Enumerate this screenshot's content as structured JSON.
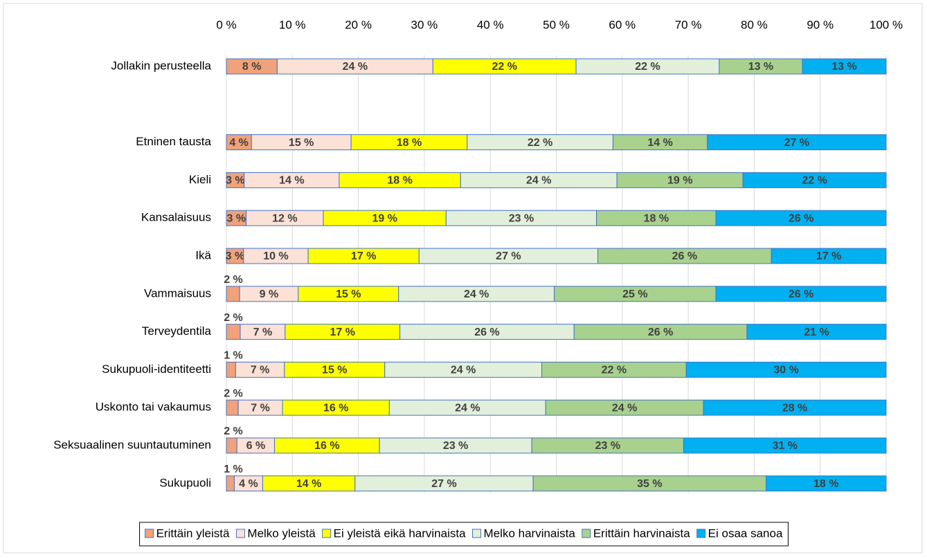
{
  "chart_data": {
    "type": "bar",
    "orientation": "horizontal",
    "stacked": true,
    "categories": [
      "Jollakin perusteella",
      null,
      "Etninen tausta",
      "Kieli",
      "Kansalaisuus",
      "Ikä",
      "Vammaisuus",
      "Terveydentila",
      "Sukupuoli-identiteetti",
      "Uskonto tai vakaumus",
      "Seksuaalinen suuntautuminen",
      "Sukupuoli"
    ],
    "series": [
      {
        "name": "Erittäin yleistä",
        "color": "#f0a27a",
        "values": [
          7.7,
          null,
          3.8,
          2.7,
          3.0,
          2.6,
          2.0,
          2.1,
          1.4,
          1.8,
          1.6,
          1.2
        ],
        "value_labels": [
          "8 %",
          null,
          "4 %",
          "3 %",
          "3 %",
          "3 %",
          "2 %",
          "2 %",
          "1 %",
          "2 %",
          "2 %",
          "1 %"
        ]
      },
      {
        "name": "Melko yleistä",
        "color": "#fbe1d6",
        "values": [
          23.6,
          null,
          15.1,
          14.4,
          11.7,
          9.8,
          8.9,
          6.8,
          7.4,
          6.7,
          5.7,
          4.3
        ],
        "value_labels": [
          "24 %",
          null,
          "15 %",
          "14 %",
          "12 %",
          "10 %",
          "9 %",
          "7 %",
          "7 %",
          "7 %",
          "6 %",
          "4 %"
        ]
      },
      {
        "name": "Ei yleistä eikä harvinaista",
        "color": "#ffff00",
        "values": [
          21.7,
          null,
          17.6,
          18.4,
          18.6,
          16.8,
          15.2,
          17.4,
          15.2,
          16.2,
          15.9,
          14.0
        ],
        "value_labels": [
          "22 %",
          null,
          "18 %",
          "18 %",
          "19 %",
          "17 %",
          "15 %",
          "17 %",
          "15 %",
          "16 %",
          "16 %",
          "14 %"
        ]
      },
      {
        "name": "Melko harvinaista",
        "color": "#e2efda",
        "values": [
          21.7,
          null,
          22.1,
          23.7,
          22.8,
          27.1,
          23.6,
          26.4,
          23.8,
          23.7,
          23.1,
          27.0
        ],
        "value_labels": [
          "22 %",
          null,
          "22 %",
          "24 %",
          "23 %",
          "27 %",
          "24 %",
          "26 %",
          "24 %",
          "24 %",
          "23 %",
          "27 %"
        ]
      },
      {
        "name": "Erittäin harvinaista",
        "color": "#a9d18e",
        "values": [
          12.6,
          null,
          14.3,
          19.1,
          18.1,
          26.3,
          24.5,
          26.2,
          21.9,
          23.9,
          23.0,
          35.3
        ],
        "value_labels": [
          "13 %",
          null,
          "14 %",
          "19 %",
          "18 %",
          "26 %",
          "25 %",
          "26 %",
          "22 %",
          "24 %",
          "23 %",
          "35 %"
        ]
      },
      {
        "name": "Ei osaa sanoa",
        "color": "#00b0f0",
        "values": [
          12.7,
          null,
          27.1,
          21.7,
          25.8,
          17.4,
          25.8,
          21.1,
          30.3,
          27.7,
          30.7,
          18.2
        ],
        "value_labels": [
          "13 %",
          null,
          "27 %",
          "22 %",
          "26 %",
          "17 %",
          "26 %",
          "21 %",
          "30 %",
          "28 %",
          "31 %",
          "18 %"
        ]
      }
    ],
    "xlim": [
      0,
      100
    ],
    "xticks": [
      {
        "value": 0,
        "label": "0 %"
      },
      {
        "value": 10,
        "label": "10 %"
      },
      {
        "value": 20,
        "label": "20 %"
      },
      {
        "value": 30,
        "label": "30 %"
      },
      {
        "value": 40,
        "label": "40 %"
      },
      {
        "value": 50,
        "label": "50 %"
      },
      {
        "value": 60,
        "label": "60 %"
      },
      {
        "value": 70,
        "label": "70 %"
      },
      {
        "value": 80,
        "label": "80 %"
      },
      {
        "value": 90,
        "label": "90 %"
      },
      {
        "value": 100,
        "label": "100 %"
      }
    ],
    "grid": true,
    "legend": "bottom"
  }
}
